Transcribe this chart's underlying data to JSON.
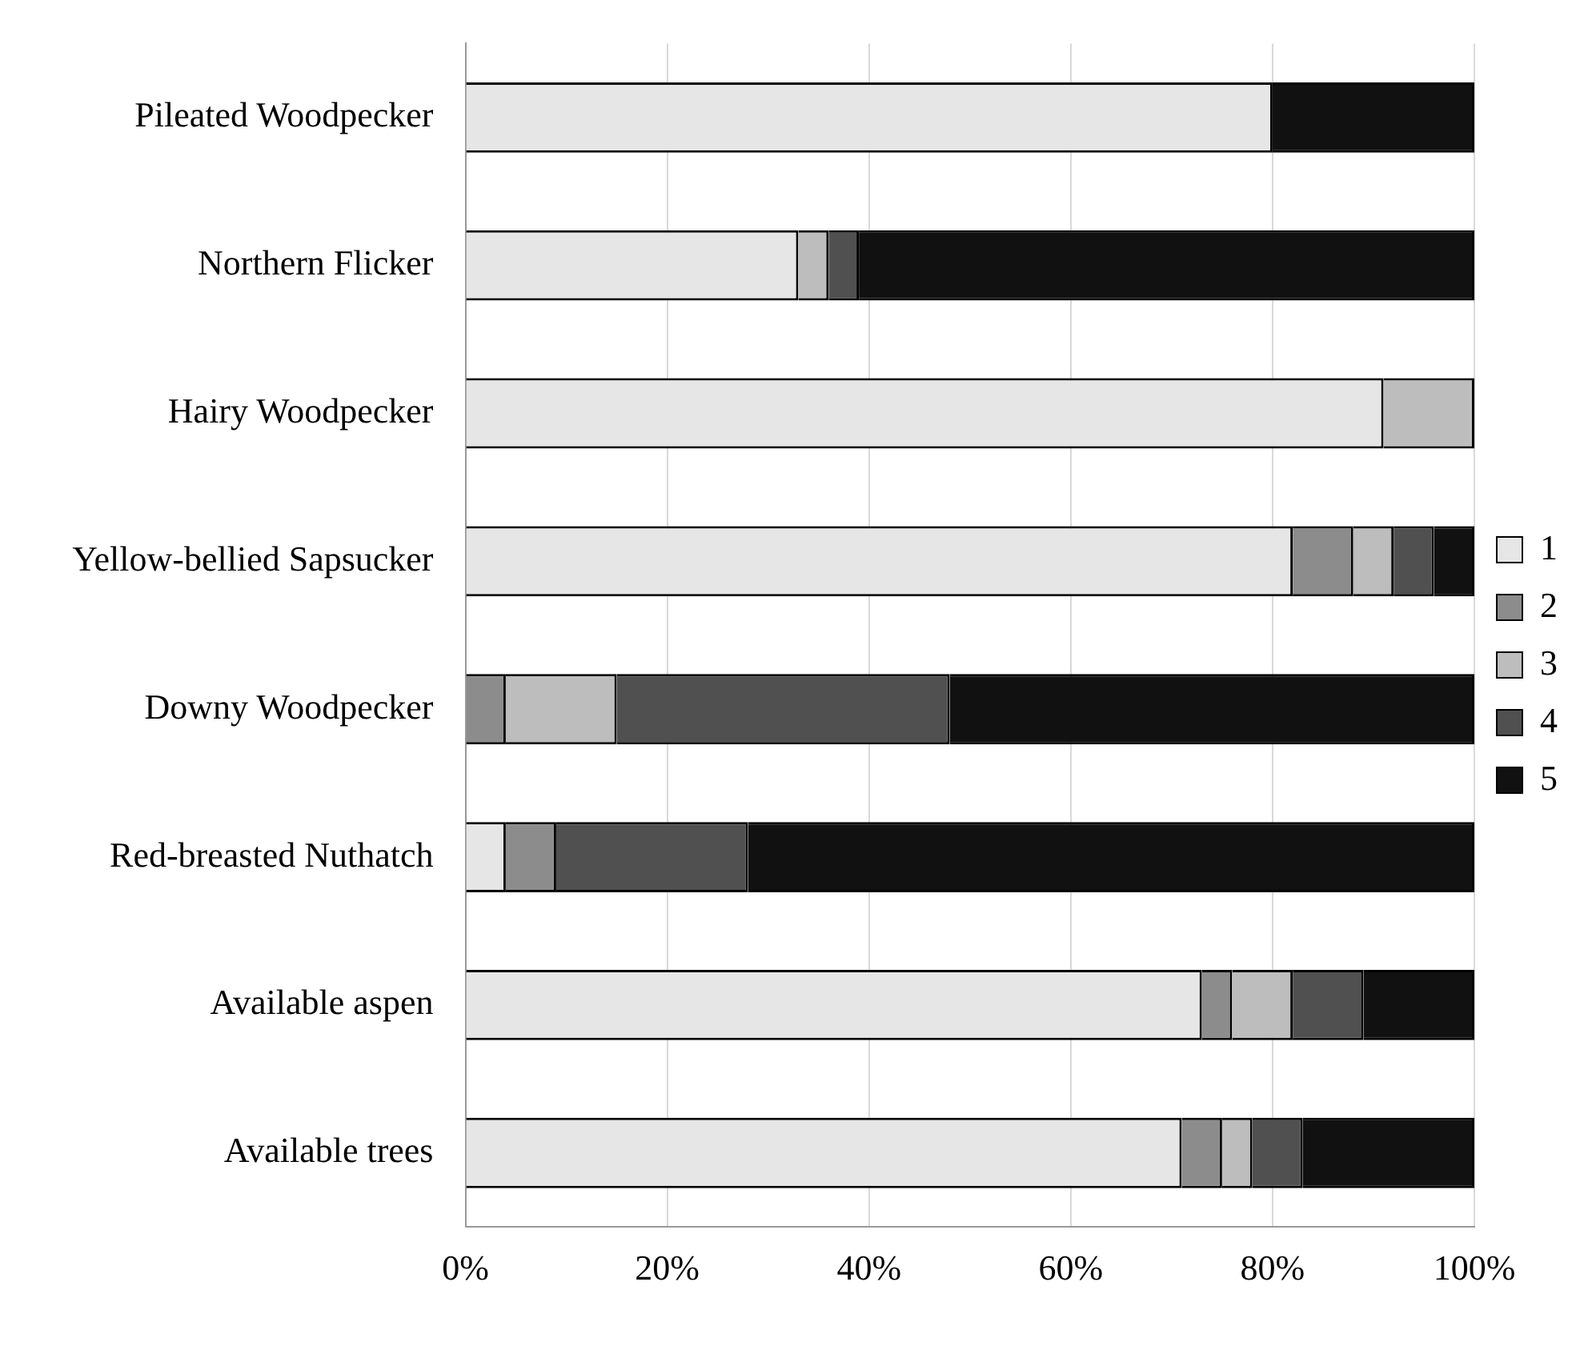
{
  "chart_data": {
    "type": "bar",
    "orientation": "horizontal",
    "stacked": true,
    "categories": [
      "Pileated Woodpecker",
      "Northern Flicker",
      "Hairy Woodpecker",
      "Yellow-bellied Sapsucker",
      "Downy Woodpecker",
      "Red-breasted Nuthatch",
      "Available aspen",
      "Available trees"
    ],
    "series": [
      {
        "name": "1",
        "color": "#e6e6e6",
        "values": [
          80,
          33,
          91,
          82,
          0,
          4,
          73,
          71
        ]
      },
      {
        "name": "2",
        "color": "#8c8c8c",
        "values": [
          0,
          0,
          0,
          6,
          4,
          5,
          3,
          4
        ]
      },
      {
        "name": "3",
        "color": "#bdbdbd",
        "values": [
          0,
          3,
          9,
          4,
          11,
          0,
          6,
          3
        ]
      },
      {
        "name": "4",
        "color": "#505050",
        "values": [
          0,
          3,
          0,
          4,
          33,
          19,
          7,
          5
        ]
      },
      {
        "name": "5",
        "color": "#111111",
        "values": [
          20,
          61,
          0,
          4,
          52,
          72,
          11,
          17
        ]
      }
    ],
    "xlim": [
      0,
      100
    ],
    "xticks": [
      {
        "value": 0,
        "label": "0%"
      },
      {
        "value": 20,
        "label": "20%"
      },
      {
        "value": 40,
        "label": "40%"
      },
      {
        "value": 60,
        "label": "60%"
      },
      {
        "value": 80,
        "label": "80%"
      },
      {
        "value": 100,
        "label": "100%"
      }
    ],
    "grid": "x",
    "legend": "right"
  }
}
